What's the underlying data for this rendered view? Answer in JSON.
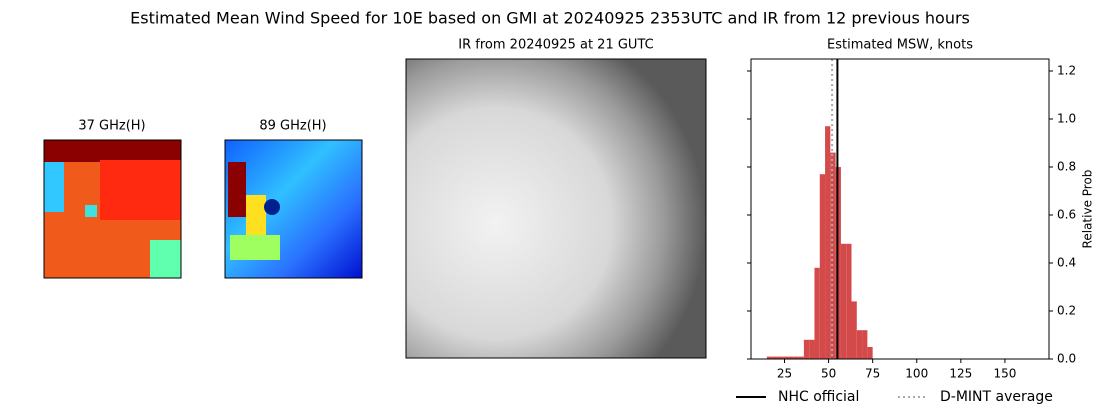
{
  "figure_title": "Estimated Mean Wind Speed for 10E based on GMI at 20240925 2353UTC and IR from 12 previous hours",
  "panels": [
    {
      "title": "37 GHz(H)"
    },
    {
      "title": "89 GHz(H)"
    },
    {
      "title": "IR from 20240925 at 21 GUTC"
    }
  ],
  "chart_data": {
    "type": "histogram",
    "title": "Estimated MSW, knots",
    "bins": [
      15,
      18,
      21,
      24,
      27,
      30,
      33,
      36,
      39,
      42,
      45,
      48,
      51,
      54,
      57,
      60,
      63,
      66,
      69,
      72,
      75
    ],
    "values": [
      0.01,
      0.01,
      0.01,
      0.01,
      0.01,
      0.01,
      0.01,
      0.08,
      0.08,
      0.38,
      0.77,
      0.97,
      0.86,
      0.8,
      0.48,
      0.48,
      0.24,
      0.12,
      0.12,
      0.05
    ],
    "color": "#d44a4a",
    "xlim": [
      6,
      175
    ],
    "xticks": [
      25,
      50,
      75,
      100,
      125,
      150
    ],
    "ylim": [
      0,
      1.25
    ],
    "yticks": [
      {
        "value": 0,
        "label": "0.0"
      },
      0.2,
      0.4,
      0.6,
      0.8,
      {
        "value": 1,
        "label": "1.0"
      },
      1.2
    ],
    "ylabel": "Relative Prob",
    "lines": [
      {
        "name": "NHC official",
        "x": 55,
        "color": "#000000",
        "style": "solid"
      },
      {
        "name": "D-MINT average",
        "x": 52,
        "color": "#aaaaaa",
        "style": "dotted"
      }
    ]
  }
}
